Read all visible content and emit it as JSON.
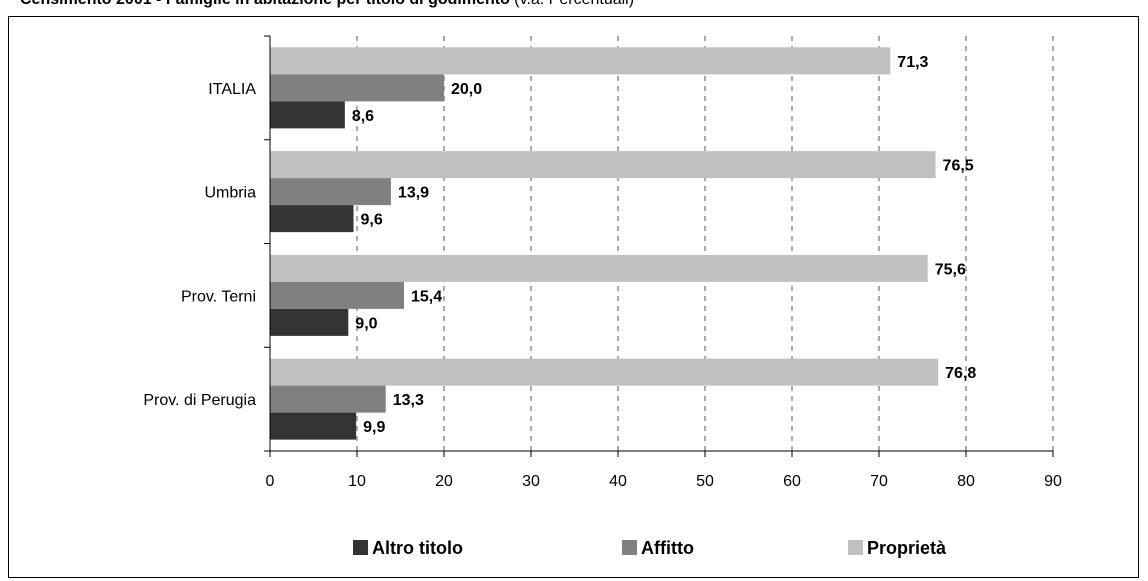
{
  "header": {
    "title": "Censimento 2001 - Famiglie in abitazione per titolo di godimento",
    "subtitle": "(v.a. Percentuali)"
  },
  "chart_data": {
    "type": "bar",
    "orientation": "horizontal",
    "categories": [
      "ITALIA",
      "Umbria",
      "Prov. Terni",
      "Prov. di Perugia"
    ],
    "series": [
      {
        "name": "Proprietà",
        "color": "#c0c0c0",
        "values": [
          71.3,
          76.5,
          75.6,
          76.8
        ],
        "labels": [
          "71,3",
          "76,5",
          "75,6",
          "76,8"
        ]
      },
      {
        "name": "Affitto",
        "color": "#808080",
        "values": [
          20.0,
          13.9,
          15.4,
          13.3
        ],
        "labels": [
          "20,0",
          "13,9",
          "15,4",
          "13,3"
        ]
      },
      {
        "name": "Altro titolo",
        "color": "#333333",
        "values": [
          8.6,
          9.6,
          9.0,
          9.9
        ],
        "labels": [
          "8,6",
          "9,6",
          "9,0",
          "9,9"
        ]
      }
    ],
    "legend_order": [
      "Altro titolo",
      "Affitto",
      "Proprietà"
    ],
    "xlim": [
      0,
      90
    ],
    "xticks": [
      0,
      10,
      20,
      30,
      40,
      50,
      60,
      70,
      80,
      90
    ],
    "grid": "vertical dashed",
    "legend_position": "bottom"
  }
}
